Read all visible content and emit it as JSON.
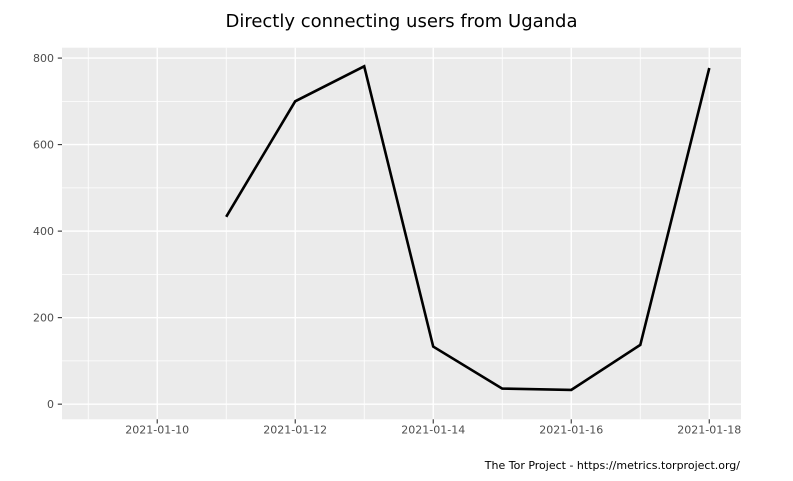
{
  "title": "Directly connecting users from Uganda",
  "footer": "The Tor Project - https://metrics.torproject.org/",
  "colors": {
    "background": "#ffffff",
    "panel_background": "#ebebeb",
    "gridline": "#ffffff",
    "line": "#000000",
    "axis_text": "#4d4d4d",
    "tick_mark": "#333333",
    "title_text": "#000000",
    "footer_text": "#000000"
  },
  "chart_data": {
    "type": "line",
    "title": "Directly connecting users from Uganda",
    "series_name": "directly-connecting-users",
    "x": [
      "2021-01-11",
      "2021-01-12",
      "2021-01-13",
      "2021-01-14",
      "2021-01-15",
      "2021-01-16",
      "2021-01-17",
      "2021-01-18"
    ],
    "values": [
      433,
      700,
      781,
      133,
      36,
      33,
      137,
      777
    ],
    "xlabel": "",
    "ylabel": "",
    "x_tick_labels": [
      "2021-01-10",
      "2021-01-12",
      "2021-01-14",
      "2021-01-16",
      "2021-01-18"
    ],
    "x_minor_gridlines": [
      "2021-01-09",
      "2021-01-11",
      "2021-01-13",
      "2021-01-15",
      "2021-01-17"
    ],
    "y_ticks": [
      0,
      200,
      400,
      600,
      800
    ],
    "y_minor_gridlines": [
      100,
      300,
      500,
      700
    ],
    "xlim_days": [
      8.62,
      18.46
    ],
    "ylim": [
      -35,
      824
    ],
    "grid": true,
    "legend": "none"
  }
}
